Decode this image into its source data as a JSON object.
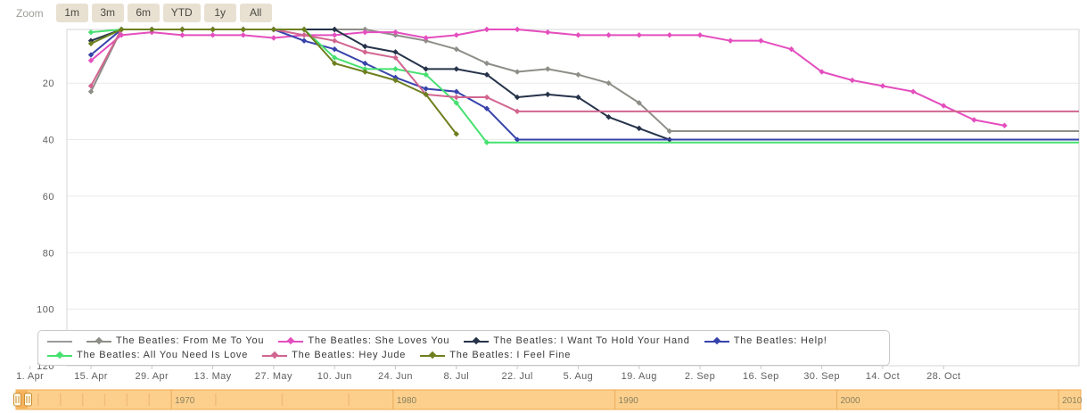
{
  "toolbar": {
    "zoom_label": "Zoom",
    "buttons": [
      "1m",
      "3m",
      "6m",
      "YTD",
      "1y",
      "All"
    ]
  },
  "chart_data": {
    "type": "line",
    "title": "",
    "xlabel": "",
    "ylabel": "",
    "y_axis": {
      "ticks": [
        20,
        40,
        60,
        80,
        100,
        120
      ],
      "reversed": true,
      "top_value": 1,
      "bottom_value": 120
    },
    "x_tick_labels": [
      "1. Apr",
      "15. Apr",
      "29. Apr",
      "13. May",
      "27. May",
      "10. Jun",
      "24. Jun",
      "8. Jul",
      "22. Jul",
      "5. Aug",
      "19. Aug",
      "2. Sep",
      "16. Sep",
      "30. Sep",
      "14. Oct",
      "28. Oct"
    ],
    "x_weekly_dates": [
      "15 Apr",
      "22 Apr",
      "29 Apr",
      "6 May",
      "13 May",
      "20 May",
      "27 May",
      "3 Jun",
      "10 Jun",
      "17 Jun",
      "24 Jun",
      "1 Jul",
      "8 Jul",
      "15 Jul",
      "22 Jul",
      "29 Jul",
      "5 Aug",
      "12 Aug",
      "19 Aug",
      "26 Aug",
      "2 Sep",
      "9 Sep",
      "16 Sep",
      "23 Sep",
      "30 Sep",
      "7 Oct",
      "14 Oct",
      "21 Oct",
      "28 Oct",
      "4 Nov",
      "11 Nov"
    ],
    "grid": "horizontal-only",
    "legend_position": "bottom-inside",
    "series": [
      {
        "name": "The Beatles: From Me To You",
        "color": "#8e8e88",
        "positions": [
          23,
          1,
          1,
          1,
          1,
          1,
          1,
          1,
          1,
          1,
          3,
          5,
          8,
          13,
          16,
          15,
          17,
          20,
          27,
          37
        ],
        "flat_to_end": true
      },
      {
        "name": "The Beatles: She Loves You",
        "color": "#e44ebe",
        "positions": [
          12,
          3,
          2,
          3,
          3,
          3,
          4,
          3,
          3,
          2,
          2,
          4,
          3,
          1,
          1,
          2,
          3,
          3,
          3,
          3,
          3,
          5,
          5,
          8,
          16,
          19,
          21,
          23,
          28,
          33,
          35
        ],
        "flat_to_end": false
      },
      {
        "name": "The Beatles: I Want To Hold Your Hand",
        "color": "#26334a",
        "positions": [
          5,
          1,
          1,
          1,
          1,
          1,
          1,
          1,
          1,
          7,
          9,
          15,
          15,
          17,
          25,
          24,
          25,
          32,
          36,
          40
        ],
        "flat_to_end": true
      },
      {
        "name": "The Beatles: Help!",
        "color": "#3743ab",
        "positions": [
          10,
          1,
          1,
          1,
          1,
          1,
          1,
          5,
          8,
          13,
          18,
          22,
          23,
          29,
          40
        ],
        "flat_to_end": true
      },
      {
        "name": "The Beatles: All You Need Is Love",
        "color": "#46e170",
        "positions": [
          2,
          1,
          1,
          1,
          1,
          1,
          1,
          1,
          11,
          15,
          15,
          17,
          27,
          41
        ],
        "flat_to_end": true
      },
      {
        "name": "The Beatles: Hey Jude",
        "color": "#d26590",
        "positions": [
          21,
          1,
          1,
          1,
          1,
          1,
          1,
          3,
          5,
          9,
          11,
          24,
          25,
          25,
          30
        ],
        "flat_to_end": true
      },
      {
        "name": "The Beatles: I Feel Fine",
        "color": "#6e7f1f",
        "positions": [
          6,
          1,
          1,
          1,
          1,
          1,
          1,
          1,
          13,
          16,
          19,
          24,
          38
        ],
        "flat_to_end": false
      }
    ]
  },
  "legend": {
    "rows": [
      {
        "items": [
          {
            "label": "",
            "color": "#9a9a9a",
            "line_only": true
          },
          {
            "label": "The Beatles: From Me To You",
            "color": "#8e8e88"
          },
          {
            "label": "The Beatles: She Loves You",
            "color": "#e44ebe"
          },
          {
            "label": "The Beatles: I Want To Hold Your Hand",
            "color": "#26334a"
          },
          {
            "label": "The Beatles: Help!",
            "color": "#3743ab"
          }
        ]
      },
      {
        "items": [
          {
            "label": "The Beatles: All You Need Is Love",
            "color": "#46e170"
          },
          {
            "label": "The Beatles: Hey Jude",
            "color": "#d26590"
          },
          {
            "label": "The Beatles: I Feel Fine",
            "color": "#6e7f1f"
          }
        ]
      }
    ]
  },
  "navigator": {
    "year_labels": [
      "1970",
      "1980",
      "1990",
      "2000",
      "2010"
    ],
    "year_values": [
      1970,
      1980,
      1990,
      2000,
      2010
    ],
    "range_start_year": 1963,
    "range_end_year": 2011,
    "minor_tick_years": [
      1964,
      1965,
      1966,
      1967,
      1968,
      1969,
      1972,
      1975,
      1978
    ],
    "colors": {
      "band_fill": "#fcd08c",
      "band_border": "#efa94c",
      "selected_fill": "#f7b35c",
      "gridline": "#e9ab5a",
      "minor_tick": "#f0bd78",
      "label": "#8a8060",
      "handle_fill": "#fffbe8",
      "handle_border": "#c98a2e"
    }
  },
  "style": {
    "axis_label_color": "#606060",
    "gridline_color": "#e9e9e9",
    "plot_border_color": "#d6d6d6"
  }
}
